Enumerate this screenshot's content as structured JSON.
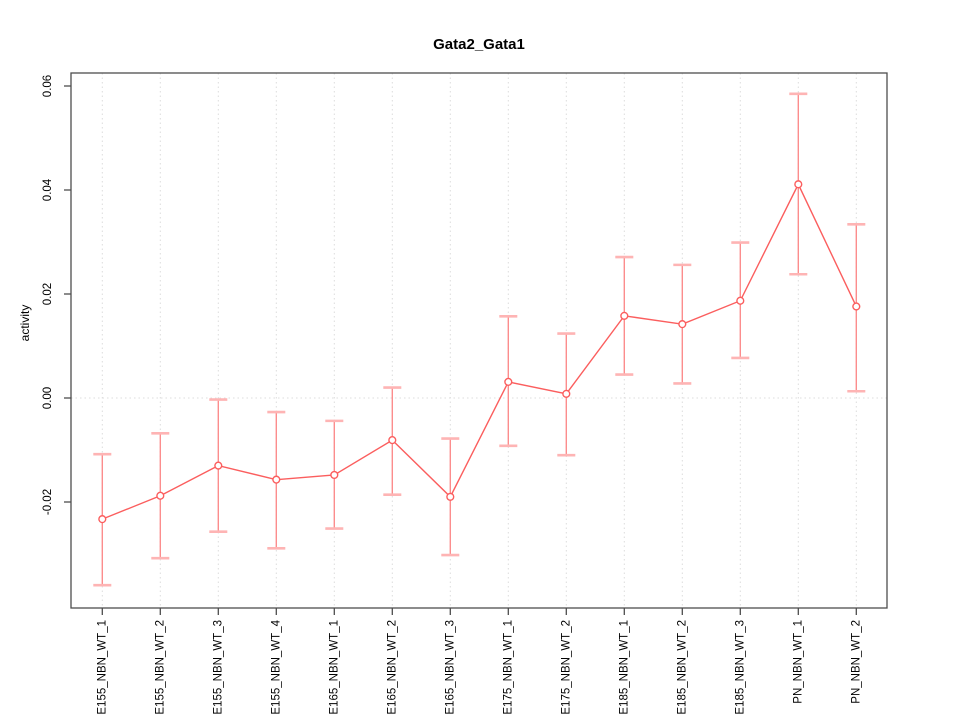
{
  "chart_data": {
    "type": "line",
    "title": "Gata2_Gata1",
    "xlabel": "",
    "ylabel": "activity",
    "legend": "none",
    "grid": "dotted vertical gridline at each category; dotted horizontal line at y=0",
    "categories": [
      "E155_NBN_WT_1",
      "E155_NBN_WT_2",
      "E155_NBN_WT_3",
      "E155_NBN_WT_4",
      "E165_NBN_WT_1",
      "E165_NBN_WT_2",
      "E165_NBN_WT_3",
      "E175_NBN_WT_1",
      "E175_NBN_WT_2",
      "E185_NBN_WT_1",
      "E185_NBN_WT_2",
      "E185_NBN_WT_3",
      "PN_NBN_WT_1",
      "PN_NBN_WT_2"
    ],
    "series": [
      {
        "name": "activity",
        "marker": "open-circle",
        "values": [
          -0.0233,
          -0.0188,
          -0.013,
          -0.0157,
          -0.0148,
          -0.0081,
          -0.019,
          0.0031,
          0.0008,
          0.0158,
          0.0142,
          0.0187,
          0.0411,
          0.0176
        ],
        "error_upper": [
          -0.0108,
          -0.0068,
          -0.0003,
          -0.0027,
          -0.0044,
          0.002,
          -0.0078,
          0.0157,
          0.0124,
          0.0271,
          0.0256,
          0.0299,
          0.0585,
          0.0334
        ],
        "error_lower": [
          -0.036,
          -0.0308,
          -0.0257,
          -0.0289,
          -0.0251,
          -0.0186,
          -0.0302,
          -0.0092,
          -0.011,
          0.0045,
          0.0028,
          0.0077,
          0.0238,
          0.0013
        ]
      }
    ],
    "ylim": [
      -0.0405,
      0.0625
    ],
    "yticks": [
      -0.02,
      0.0,
      0.02,
      0.04,
      0.06
    ],
    "ytick_labels": [
      "-0.02",
      "0.00",
      "0.02",
      "0.04",
      "0.06"
    ],
    "colors": {
      "series_line": "#fb5e5e",
      "point_stroke": "#fb5e5e",
      "point_fill": "#ffffff",
      "error_bar": "#fc8d8d",
      "error_cap": "#feb4b4",
      "grid": "#dcdcdc",
      "axis": "#4d4d4d",
      "text": "#000000"
    }
  }
}
